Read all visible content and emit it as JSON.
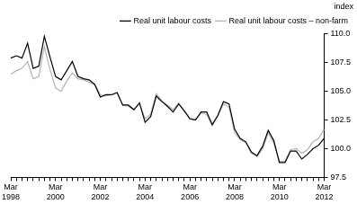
{
  "chart_data": {
    "type": "line",
    "y_label": "index",
    "categories": [
      "Mar 1998",
      null,
      null,
      null,
      null,
      null,
      null,
      null,
      "Mar 2000",
      null,
      null,
      null,
      null,
      null,
      null,
      null,
      "Mar 2002",
      null,
      null,
      null,
      null,
      null,
      null,
      null,
      "Mar 2004",
      null,
      null,
      null,
      null,
      null,
      null,
      null,
      "Mar 2006",
      null,
      null,
      null,
      null,
      null,
      null,
      null,
      "Mar 2008",
      null,
      null,
      null,
      null,
      null,
      null,
      null,
      "Mar 2010",
      null,
      null,
      null,
      null,
      null,
      null,
      null,
      "Mar 2012"
    ],
    "series": [
      {
        "name": "Real unit labour costs",
        "color": "#000000",
        "values": [
          107.9,
          108.1,
          107.9,
          109.2,
          107.0,
          107.2,
          109.8,
          108.0,
          106.3,
          106.0,
          106.8,
          107.6,
          106.3,
          106.1,
          106.0,
          105.6,
          104.5,
          104.7,
          104.7,
          104.9,
          103.8,
          103.8,
          103.4,
          104.0,
          102.3,
          102.8,
          104.6,
          104.1,
          103.7,
          103.2,
          103.9,
          103.3,
          102.6,
          102.5,
          103.2,
          103.2,
          102.1,
          102.9,
          104.1,
          103.9,
          101.7,
          100.9,
          100.6,
          99.7,
          99.4,
          100.2,
          101.6,
          100.7,
          98.8,
          98.8,
          99.8,
          99.8,
          99.1,
          99.5,
          100.0,
          100.3,
          100.9
        ]
      },
      {
        "name": "Real unit labour costs – non-farm",
        "color": "#b4b4b4",
        "values": [
          106.5,
          106.8,
          107.0,
          107.6,
          106.1,
          106.3,
          108.9,
          106.9,
          105.3,
          105.0,
          105.9,
          106.6,
          106.1,
          106.0,
          105.8,
          105.6,
          104.7,
          104.6,
          104.7,
          104.9,
          103.8,
          103.7,
          103.4,
          103.9,
          102.6,
          103.0,
          104.8,
          104.2,
          103.8,
          103.4,
          104.0,
          103.3,
          102.7,
          102.5,
          103.1,
          103.0,
          102.0,
          102.9,
          103.9,
          103.6,
          101.4,
          100.8,
          100.5,
          99.6,
          99.3,
          100.0,
          101.4,
          100.5,
          98.9,
          98.9,
          99.9,
          100.0,
          99.6,
          99.9,
          100.6,
          100.9,
          101.7
        ]
      }
    ],
    "ylim": [
      97.5,
      110
    ],
    "yticks": [
      97.5,
      {
        "value": 100,
        "label": "100.0"
      },
      102.5,
      {
        "value": 105,
        "label": "105.0"
      },
      107.5,
      {
        "value": 110,
        "label": "110.0"
      }
    ],
    "grid": false,
    "legend": "top"
  }
}
